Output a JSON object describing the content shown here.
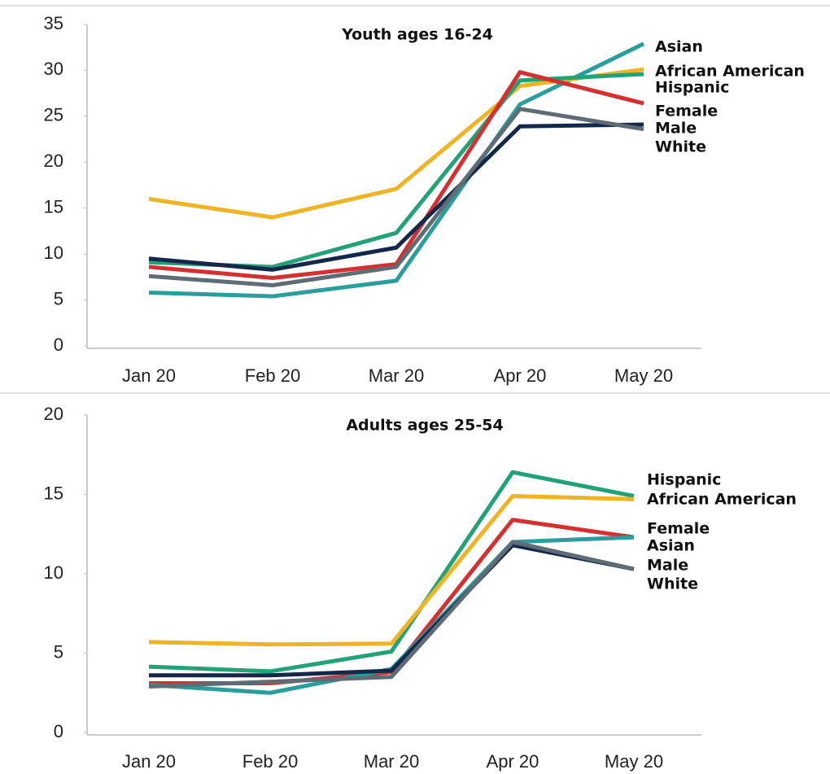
{
  "chart_data": [
    {
      "type": "line",
      "title": "Youth ages 16-24",
      "categories": [
        "Jan 20",
        "Feb 20",
        "Mar 20",
        "Apr 20",
        "May 20"
      ],
      "ylim": [
        0,
        35
      ],
      "yticks": [
        0,
        5,
        10,
        15,
        20,
        25,
        30,
        35
      ],
      "series": [
        {
          "name": "Asian",
          "color": "#2a9d9d",
          "values": [
            5.8,
            5.4,
            7.1,
            26.3,
            32.9
          ]
        },
        {
          "name": "African American",
          "color": "#f0b323",
          "values": [
            16,
            14,
            17.1,
            28.3,
            30.1
          ]
        },
        {
          "name": "Hispanic",
          "color": "#22a377",
          "values": [
            9.1,
            8.6,
            12.3,
            28.9,
            29.6
          ]
        },
        {
          "name": "Female",
          "color": "#d62f2f",
          "values": [
            8.6,
            7.4,
            8.9,
            29.8,
            26.4
          ]
        },
        {
          "name": "Male",
          "color": "#14284b",
          "values": [
            9.5,
            8.3,
            10.7,
            23.9,
            24.1
          ]
        },
        {
          "name": "White",
          "color": "#5f6b75",
          "values": [
            7.6,
            6.6,
            8.6,
            25.8,
            23.6
          ]
        }
      ]
    },
    {
      "type": "line",
      "title": "Adults ages 25-54",
      "categories": [
        "Jan 20",
        "Feb 20",
        "Mar 20",
        "Apr 20",
        "May 20"
      ],
      "ylim": [
        0,
        20
      ],
      "yticks": [
        0,
        5,
        10,
        15,
        20
      ],
      "series": [
        {
          "name": "Hispanic",
          "color": "#22a377",
          "values": [
            4.15,
            3.85,
            5.1,
            16.4,
            14.9
          ]
        },
        {
          "name": "African American",
          "color": "#f0b323",
          "values": [
            5.7,
            5.55,
            5.6,
            14.9,
            14.7
          ]
        },
        {
          "name": "Female",
          "color": "#d62f2f",
          "values": [
            3.1,
            3.1,
            3.8,
            13.4,
            12.3
          ]
        },
        {
          "name": "Asian",
          "color": "#2a9d9d",
          "values": [
            3.0,
            2.5,
            4.0,
            12.0,
            12.3
          ]
        },
        {
          "name": "Male",
          "color": "#14284b",
          "values": [
            3.6,
            3.6,
            3.9,
            11.8,
            10.3
          ]
        },
        {
          "name": "White",
          "color": "#5f6b75",
          "values": [
            2.9,
            3.2,
            3.5,
            12.0,
            10.3
          ]
        }
      ]
    }
  ]
}
